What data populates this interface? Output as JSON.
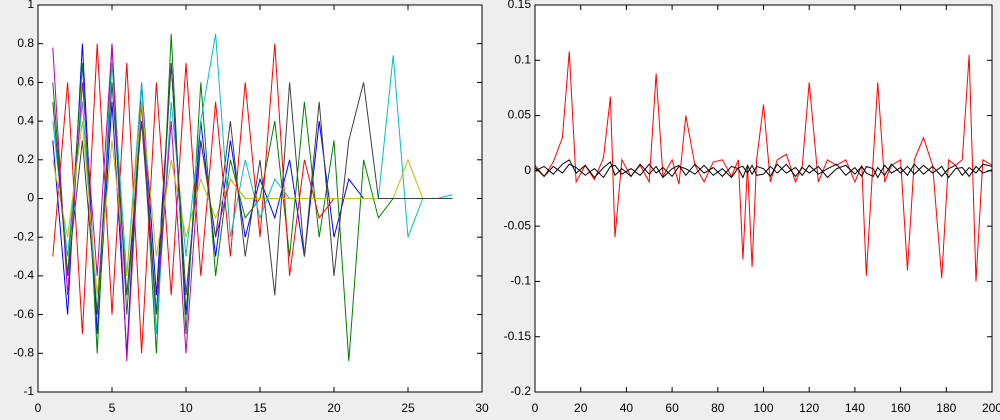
{
  "chart_data": [
    {
      "type": "line",
      "x": [
        1,
        2,
        3,
        4,
        5,
        6,
        7,
        8,
        9,
        10,
        11,
        12,
        13,
        14,
        15,
        16,
        17,
        18,
        19,
        20,
        21,
        22,
        23,
        24,
        25,
        26,
        27,
        28
      ],
      "series": [
        {
          "color": "#0000ff",
          "values": [
            0.3,
            -0.6,
            0.8,
            -0.7,
            0.5,
            -0.8,
            0.6,
            -0.5,
            0.7,
            -0.6,
            0.4,
            -0.3,
            0.3,
            -0.2,
            0.1,
            -0.1,
            0.2,
            -0.3,
            0.4,
            -0.2,
            0.1,
            0,
            0,
            0,
            0,
            0,
            0,
            0
          ]
        },
        {
          "color": "#008000",
          "values": [
            0.6,
            -0.4,
            0.7,
            -0.8,
            0.8,
            -0.6,
            0.5,
            -0.8,
            0.85,
            -0.7,
            0.6,
            -0.4,
            0.2,
            -0.1,
            0,
            0.4,
            -0.3,
            0.5,
            -0.2,
            0.3,
            -0.84,
            0.2,
            -0.1,
            0,
            0,
            0,
            0,
            0
          ]
        },
        {
          "color": "#ff0000",
          "values": [
            -0.3,
            0.6,
            -0.7,
            0.8,
            -0.6,
            0.7,
            -0.8,
            0.6,
            -0.5,
            0.7,
            -0.4,
            0.5,
            -0.3,
            0.6,
            -0.2,
            0.8,
            -0.4,
            0.2,
            -0.1,
            0,
            0,
            0,
            0,
            0,
            0,
            0,
            0,
            0
          ]
        },
        {
          "color": "#00bfbf",
          "values": [
            0.4,
            -0.3,
            0.5,
            -0.6,
            0.7,
            -0.4,
            0.6,
            -0.7,
            0.5,
            -0.3,
            0.4,
            0.85,
            -0.2,
            0.2,
            -0.1,
            0.1,
            0,
            0,
            0,
            0,
            0,
            0,
            0,
            0.74,
            -0.2,
            0,
            0,
            0.02
          ]
        },
        {
          "color": "#bf00bf",
          "values": [
            0.78,
            -0.5,
            0.6,
            -0.4,
            0.8,
            -0.84,
            0.5,
            -0.6,
            0.4,
            -0.8,
            0.3,
            -0.2,
            0.1,
            0,
            0,
            0,
            0,
            0,
            0,
            0,
            0,
            0,
            0,
            0,
            0,
            0,
            0,
            0
          ]
        },
        {
          "color": "#bfbf00",
          "values": [
            0.2,
            -0.2,
            0.4,
            -0.5,
            0.3,
            -0.4,
            0.5,
            -0.3,
            0.2,
            -0.2,
            0.1,
            -0.1,
            0.1,
            0,
            0,
            0,
            0,
            0,
            0,
            0,
            0,
            0,
            0,
            0,
            0.2,
            0,
            0,
            0
          ]
        },
        {
          "color": "#404040",
          "values": [
            0.5,
            -0.4,
            0.3,
            -0.6,
            0.6,
            -0.5,
            0.4,
            -0.6,
            0.7,
            -0.5,
            0.3,
            -0.2,
            0.4,
            -0.3,
            0.2,
            -0.5,
            0.6,
            -0.3,
            0.5,
            -0.4,
            0.3,
            0.6,
            0,
            0,
            0,
            0,
            0,
            0
          ]
        }
      ],
      "xlim": [
        0,
        30
      ],
      "xticks": [
        0,
        5,
        10,
        15,
        20,
        25,
        30
      ],
      "ylim": [
        -1,
        1
      ],
      "yticks": [
        -1,
        -0.8,
        -0.6,
        -0.4,
        -0.2,
        0,
        0.2,
        0.4,
        0.6,
        0.8,
        1
      ]
    },
    {
      "type": "line",
      "x": [
        0,
        4,
        8,
        12,
        15,
        18,
        22,
        26,
        30,
        33,
        35,
        38,
        42,
        46,
        50,
        53,
        56,
        60,
        63,
        66,
        70,
        74,
        78,
        82,
        86,
        89,
        91,
        93,
        95,
        97,
        100,
        103,
        106,
        110,
        114,
        117,
        120,
        124,
        128,
        132,
        136,
        140,
        143,
        145,
        148,
        150,
        153,
        156,
        160,
        163,
        166,
        170,
        174,
        178,
        181,
        184,
        187,
        190,
        193,
        196,
        200
      ],
      "series": [
        {
          "color": "#ff0000",
          "values": [
            0.005,
            -0.005,
            0.008,
            0.03,
            0.108,
            -0.01,
            0.005,
            -0.008,
            0.012,
            0.067,
            -0.06,
            0.01,
            -0.005,
            0.005,
            -0.01,
            0.088,
            -0.005,
            0.01,
            -0.012,
            0.05,
            0.005,
            -0.01,
            0.008,
            0.01,
            -0.005,
            0.01,
            -0.08,
            0.005,
            -0.087,
            0.01,
            0.06,
            -0.01,
            0.01,
            0.015,
            -0.01,
            0.005,
            0.08,
            -0.01,
            0.01,
            0.005,
            0.01,
            -0.01,
            0.005,
            -0.095,
            0.01,
            0.08,
            -0.01,
            0.005,
            0.01,
            -0.09,
            0.01,
            0.03,
            0.005,
            -0.097,
            0.01,
            0.005,
            0.01,
            0.105,
            -0.1,
            0.01,
            0.005
          ]
        },
        {
          "color": "#000000",
          "values": [
            0,
            0.004,
            -0.003,
            0.006,
            0.01,
            -0.002,
            0.005,
            -0.006,
            0.003,
            0.008,
            -0.004,
            0.002,
            -0.005,
            0.006,
            -0.003,
            0.004,
            -0.006,
            0.002,
            0.005,
            -0.004,
            0.006,
            -0.002,
            0.003,
            -0.005,
            0.004,
            0.002,
            -0.006,
            0.005,
            -0.003,
            0.004,
            0.002,
            -0.005,
            0.006,
            -0.002,
            0.003,
            -0.004,
            0.005,
            -0.003,
            0.002,
            0.006,
            -0.004,
            0.003,
            -0.005,
            0.004,
            0.002,
            -0.006,
            0.005,
            -0.002,
            0.003,
            -0.004,
            0.006,
            -0.003,
            0.004,
            -0.005,
            0.002,
            0.005,
            -0.004,
            0.003,
            -0.002,
            0.006,
            0.004
          ]
        },
        {
          "color": "#000000",
          "values": [
            0.003,
            -0.005,
            0.004,
            -0.002,
            0.006,
            0.003,
            -0.004,
            0.002,
            -0.006,
            0.004,
            0.005,
            -0.003,
            0.002,
            -0.004,
            0.006,
            -0.002,
            0.003,
            -0.005,
            0.004,
            0.002,
            -0.003,
            0.005,
            -0.004,
            0.002,
            -0.006,
            0.003,
            0.004,
            -0.002,
            0.005,
            -0.004,
            -0.003,
            0.004,
            -0.002,
            0.006,
            -0.005,
            0.003,
            -0.002,
            0.004,
            -0.006,
            0.002,
            0.005,
            -0.003,
            0.004,
            -0.002,
            -0.005,
            0.003,
            -0.004,
            0.006,
            -0.002,
            0.004,
            -0.003,
            0.005,
            -0.002,
            0.004,
            -0.006,
            0.002,
            0.003,
            -0.005,
            0.004,
            -0.002,
            0.001
          ]
        }
      ],
      "xlim": [
        0,
        200
      ],
      "xticks": [
        0,
        20,
        40,
        60,
        80,
        100,
        120,
        140,
        160,
        180,
        200
      ],
      "ylim": [
        -0.2,
        0.15
      ],
      "yticks": [
        -0.2,
        -0.15,
        -0.1,
        -0.05,
        0,
        0.05,
        0.1,
        0.15
      ]
    }
  ]
}
